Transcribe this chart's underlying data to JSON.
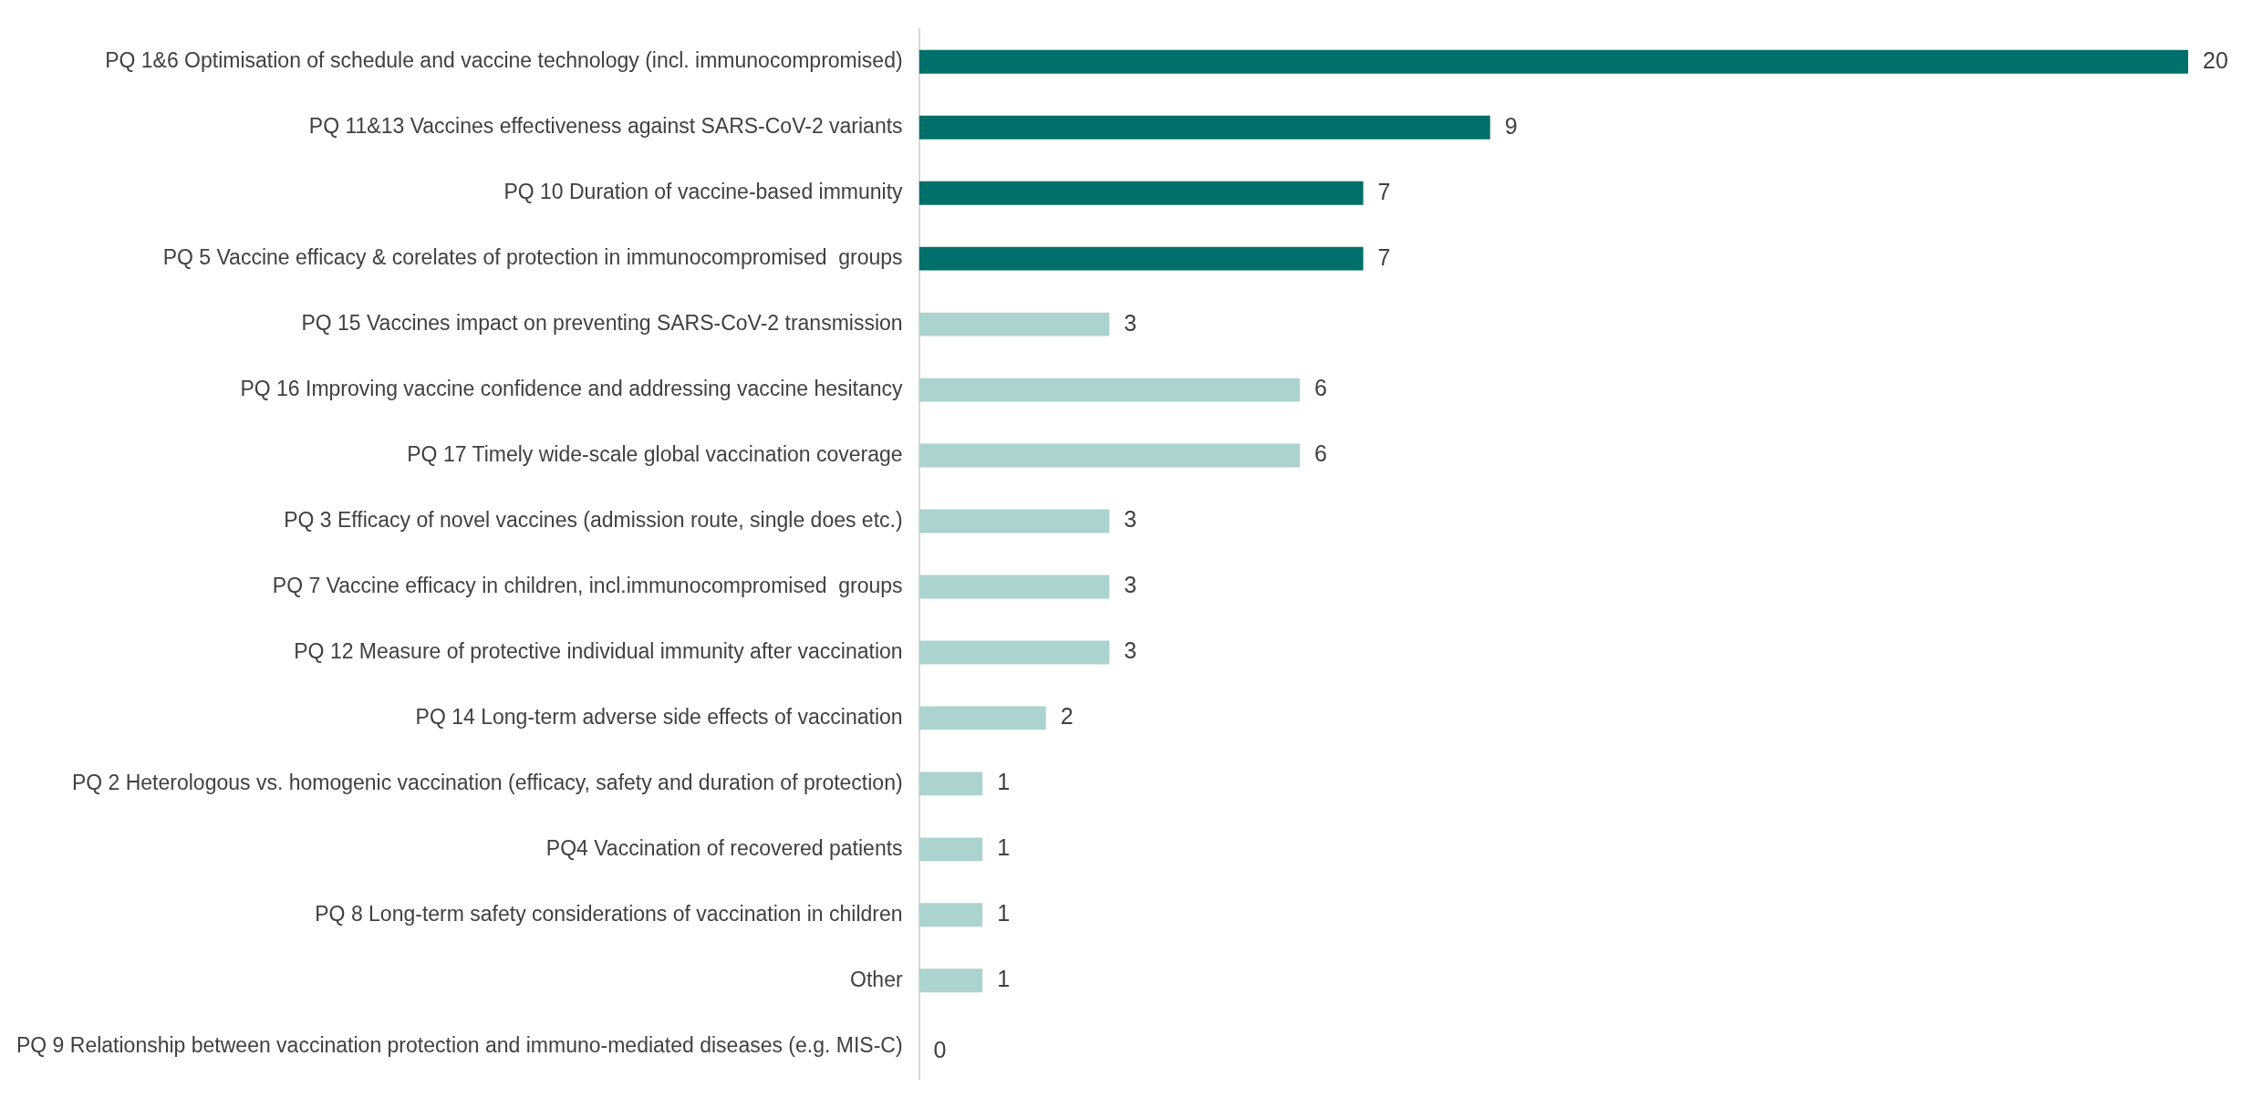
{
  "chart_data": {
    "type": "bar",
    "orientation": "horizontal",
    "categories": [
      "PQ 1&6 Optimisation of schedule and vaccine technology (incl. immunocompromised)",
      "PQ 11&13 Vaccines effectiveness against SARS-CoV-2 variants",
      "PQ 10 Duration of vaccine-based immunity",
      "PQ 5 Vaccine efficacy & corelates of protection in immunocompromised  groups",
      "PQ 15 Vaccines impact on preventing SARS-CoV-2 transmission",
      "PQ 16 Improving vaccine confidence and addressing vaccine hesitancy",
      "PQ 17 Timely wide-scale global vaccination coverage",
      "PQ 3 Efficacy of novel vaccines (admission route, single does etc.)",
      "PQ 7 Vaccine efficacy in children, incl.immunocompromised  groups",
      "PQ 12 Measure of protective individual immunity after vaccination",
      "PQ 14 Long-term adverse side effects of vaccination",
      "PQ 2 Heterologous vs. homogenic vaccination (efficacy, safety and duration of protection)",
      "PQ4 Vaccination of recovered patients",
      "PQ 8 Long-term safety considerations of vaccination in children",
      "Other",
      "PQ 9 Relationship between vaccination protection and immuno-mediated diseases (e.g. MIS-C)"
    ],
    "values": [
      20,
      9,
      7,
      7,
      3,
      6,
      6,
      3,
      3,
      3,
      2,
      1,
      1,
      1,
      1,
      0
    ],
    "colors": [
      "#00706a",
      "#00706a",
      "#00706a",
      "#00706a",
      "#abd3cf",
      "#abd3cf",
      "#abd3cf",
      "#abd3cf",
      "#abd3cf",
      "#abd3cf",
      "#abd3cf",
      "#abd3cf",
      "#abd3cf",
      "#abd3cf",
      "#abd3cf",
      "#abd3cf"
    ],
    "xlim": [
      0,
      20
    ],
    "data_labels": true,
    "tick_labels": "y",
    "grid": false,
    "legend": false
  }
}
